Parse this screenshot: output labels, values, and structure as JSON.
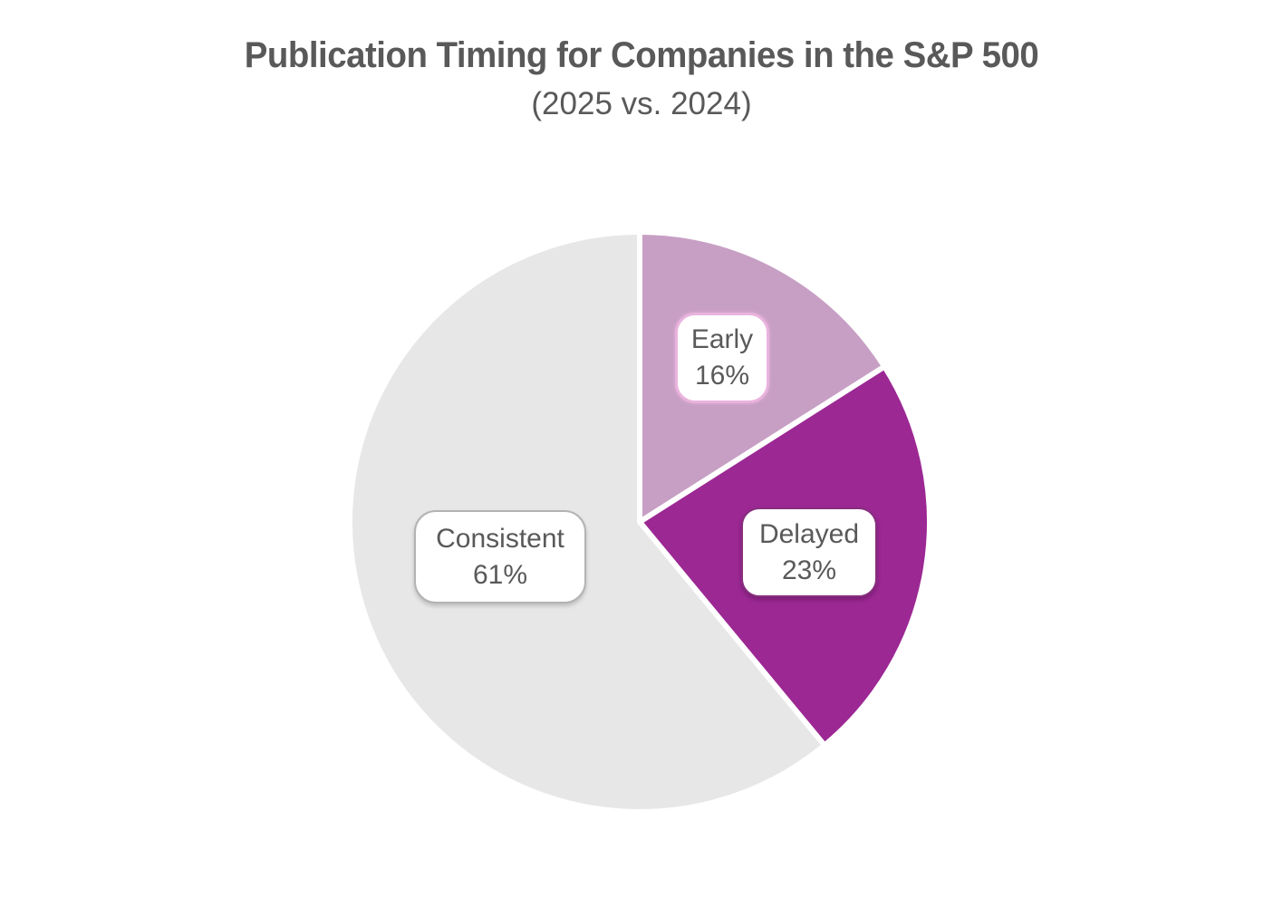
{
  "header": {
    "title": "Publication Timing for Companies in the S&P 500",
    "subtitle": "(2025 vs. 2024)"
  },
  "colors": {
    "title_text": "#595959",
    "label_text": "#595959",
    "slice_gap_stroke": "#ffffff",
    "background": "#ffffff"
  },
  "chart_data": {
    "type": "pie",
    "title": "Publication Timing for Companies in the S&P 500",
    "subtitle": "(2025 vs. 2024)",
    "start_angle_deg": 0,
    "direction": "clockwise",
    "legend": "none",
    "labels_in_callouts": true,
    "slices": [
      {
        "label": "Early",
        "value": 16,
        "display": "16%",
        "color": "#c79fc4"
      },
      {
        "label": "Delayed",
        "value": 23,
        "display": "23%",
        "color": "#9c2894"
      },
      {
        "label": "Consistent",
        "value": 61,
        "display": "61%",
        "color": "#e8e7e8"
      }
    ]
  }
}
